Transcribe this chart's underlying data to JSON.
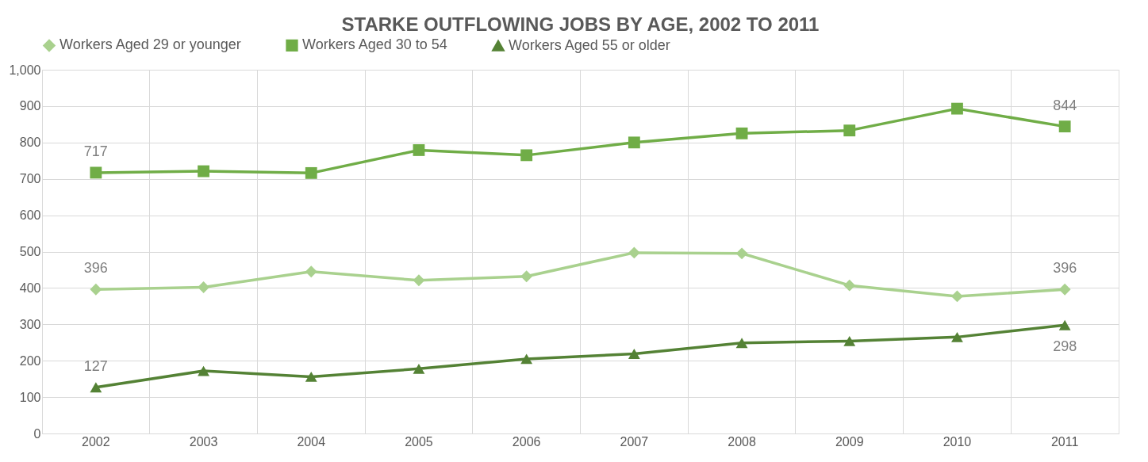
{
  "chart_data": {
    "type": "line",
    "title": "STARKE OUTFLOWING JOBS BY AGE, 2002 TO 2011",
    "categories": [
      "2002",
      "2003",
      "2004",
      "2005",
      "2006",
      "2007",
      "2008",
      "2009",
      "2010",
      "2011"
    ],
    "series": [
      {
        "name": "Workers Aged 29 or younger",
        "color": "#a9d18e",
        "marker": "diamond",
        "values": [
          396,
          402,
          445,
          421,
          432,
          497,
          495,
          407,
          377,
          396
        ],
        "value_labels": [
          "396",
          null,
          null,
          null,
          null,
          null,
          null,
          null,
          null,
          "396"
        ]
      },
      {
        "name": "Workers Aged 30 to 54",
        "color": "#70ad47",
        "marker": "square",
        "values": [
          717,
          721,
          716,
          779,
          765,
          800,
          825,
          833,
          893,
          844
        ],
        "value_labels": [
          "717",
          null,
          null,
          null,
          null,
          null,
          null,
          null,
          null,
          "844"
        ]
      },
      {
        "name": "Workers Aged 55 or older",
        "color": "#548235",
        "marker": "triangle",
        "values": [
          127,
          172,
          156,
          178,
          205,
          219,
          249,
          254,
          265,
          298
        ],
        "value_labels": [
          "127",
          null,
          null,
          null,
          null,
          null,
          null,
          null,
          null,
          "298"
        ]
      }
    ],
    "ylim": [
      0,
      1000
    ],
    "yticks": [
      0,
      {
        "value": 100,
        "label": "100"
      },
      200,
      300,
      400,
      500,
      600,
      700,
      800,
      900,
      {
        "value": 1000,
        "label": "1,000"
      }
    ],
    "grid": true,
    "legend": "top",
    "line_style": "solid"
  }
}
